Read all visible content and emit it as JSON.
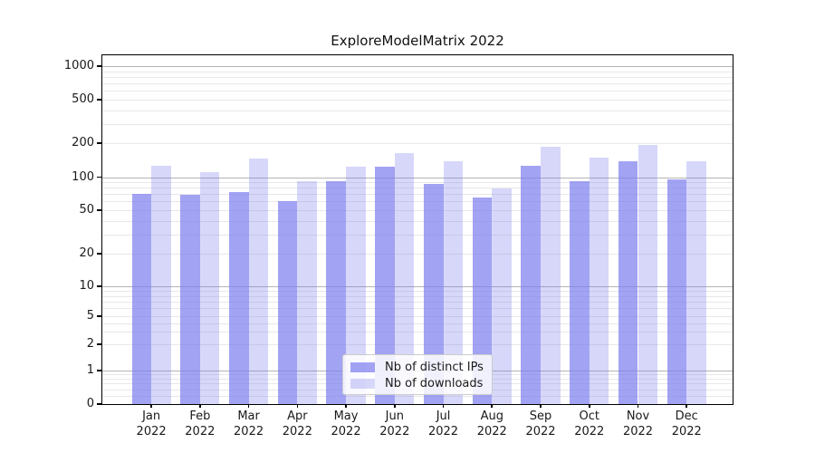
{
  "chart_data": {
    "type": "bar",
    "title": "ExploreModelMatrix 2022",
    "categories": [
      "Jan 2022",
      "Feb 2022",
      "Mar 2022",
      "Apr 2022",
      "May 2022",
      "Jun 2022",
      "Jul 2022",
      "Aug 2022",
      "Sep 2022",
      "Oct 2022",
      "Nov 2022",
      "Dec 2022"
    ],
    "series": [
      {
        "name": "Nb of distinct IPs",
        "values": [
          70,
          69,
          73,
          60,
          91,
          123,
          87,
          65,
          126,
          91,
          138,
          96
        ],
        "color": "rgba(124,124,240,0.7)"
      },
      {
        "name": "Nb of downloads",
        "values": [
          125,
          111,
          145,
          92,
          124,
          162,
          137,
          79,
          185,
          148,
          192,
          138
        ],
        "color": "rgba(124,124,240,0.3)"
      }
    ],
    "xlabel": "",
    "ylabel": "",
    "yscale": "symlog",
    "yticks": [
      0,
      1,
      2,
      5,
      10,
      20,
      50,
      100,
      200,
      500,
      1000
    ],
    "ylim": [
      0,
      1300
    ],
    "grid": "major-and-minor-horizontal",
    "legend": {
      "entries": [
        "Nb of distinct IPs",
        "Nb of downloads"
      ],
      "position": "lower center, overlapping plot"
    }
  },
  "colors": {
    "bar_base": "#7c7cf0",
    "bar_distinct_ips_rendered": "#a8a8f4",
    "bar_downloads_rendered": "#d9d9f9",
    "major_grid": "#b4b4b4",
    "minor_grid": "#e8e8e8",
    "spine": "#000000",
    "background": "#ffffff",
    "text": "#1a1a1a"
  }
}
